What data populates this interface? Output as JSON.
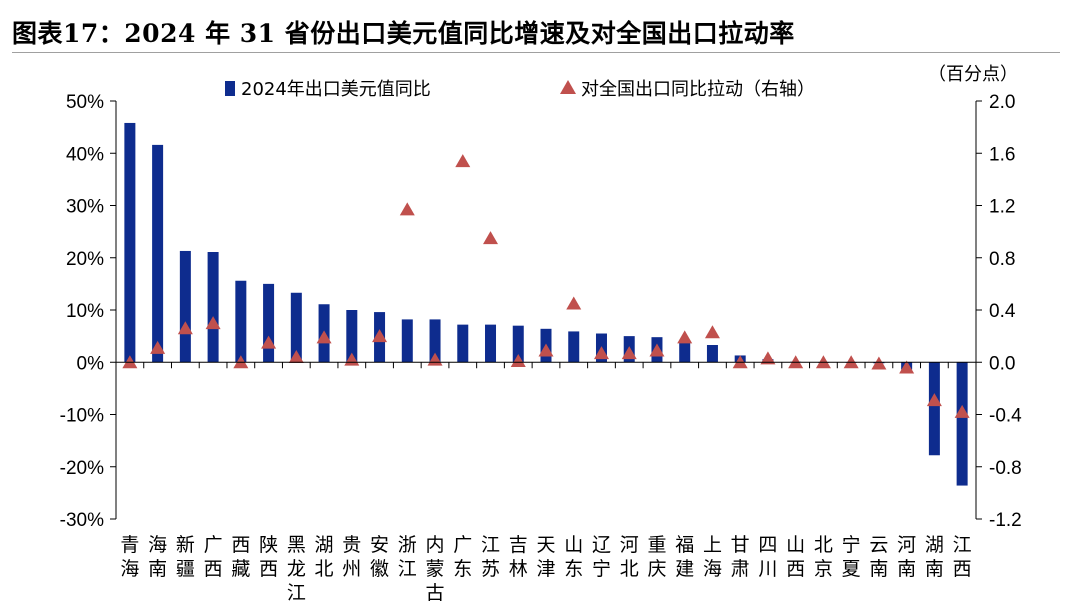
{
  "title": "图表17：2024 年 31 省份出口美元值同比增速及对全国出口拉动率",
  "unit_right": "（百分点）",
  "chart_data": {
    "type": "bar",
    "categories": [
      "青海",
      "海南",
      "新疆",
      "广西",
      "西藏",
      "陕西",
      "黑龙江",
      "湖北",
      "贵州",
      "安徽",
      "浙江",
      "内蒙古",
      "广东",
      "江苏",
      "吉林",
      "天津",
      "山东",
      "辽宁",
      "河北",
      "重庆",
      "福建",
      "上海",
      "甘肃",
      "四川",
      "山西",
      "北京",
      "宁夏",
      "云南",
      "河南",
      "湖南",
      "江西"
    ],
    "series": [
      {
        "name": "2024年出口美元值同比",
        "type": "bar",
        "axis": "left",
        "color": "#0e2c8e",
        "values": [
          45.8,
          41.6,
          21.3,
          21.1,
          15.6,
          15.0,
          13.3,
          11.1,
          10.0,
          9.6,
          8.2,
          8.2,
          7.2,
          7.2,
          7.0,
          6.4,
          5.9,
          5.5,
          5.0,
          4.8,
          3.7,
          3.3,
          1.3,
          0.6,
          0.1,
          0.0,
          -0.1,
          -0.2,
          -1.4,
          -17.8,
          -23.6
        ]
      },
      {
        "name": "对全国出口同比拉动（右轴）",
        "type": "scatter",
        "marker": "triangle",
        "axis": "right",
        "color": "#c0504d",
        "values": [
          0.0,
          0.11,
          0.26,
          0.3,
          0.0,
          0.15,
          0.04,
          0.19,
          0.02,
          0.2,
          1.17,
          0.02,
          1.54,
          0.95,
          0.01,
          0.09,
          0.45,
          0.07,
          0.07,
          0.09,
          0.19,
          0.23,
          0.0,
          0.03,
          0.0,
          0.0,
          0.0,
          -0.01,
          -0.04,
          -0.29,
          -0.38
        ]
      }
    ],
    "y_left": {
      "min": -30,
      "max": 50,
      "step": 10,
      "tick_labels": [
        "-30%",
        "-20%",
        "-10%",
        "0%",
        "10%",
        "20%",
        "30%",
        "40%",
        "50%"
      ]
    },
    "y_right": {
      "min": -1.2,
      "max": 2.0,
      "step": 0.4,
      "tick_labels": [
        "-1.2",
        "-0.8",
        "-0.4",
        "0.0",
        "0.4",
        "0.8",
        "1.2",
        "1.6",
        "2.0"
      ]
    },
    "legend_position": "top",
    "grid": false
  }
}
